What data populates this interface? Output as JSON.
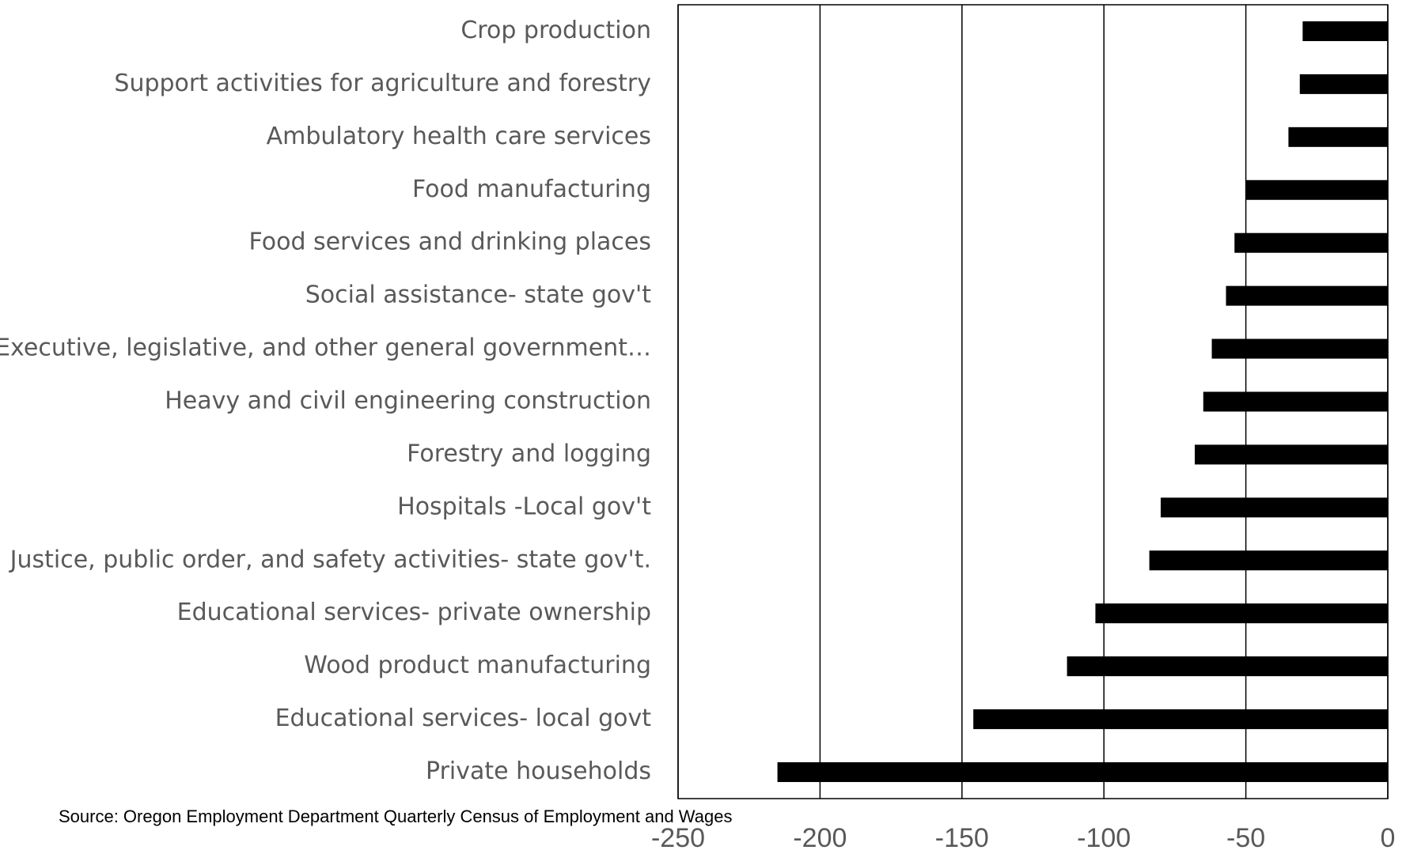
{
  "chart_data": {
    "type": "barh",
    "source": "Source: Oregon Employment Department Quarterly Census of Employment and Wages",
    "categories": [
      "Crop production",
      "Support activities for agriculture and forestry",
      "Ambulatory health care services",
      "Food manufacturing",
      "Food services and drinking places",
      "Social assistance- state gov't",
      "Executive, legislative, and other general government…",
      "Heavy and civil engineering construction",
      "Forestry and logging",
      "Hospitals -Local gov't",
      "Justice, public order, and safety activities- state gov't.",
      "Educational services- private ownership",
      "Wood product manufacturing",
      "Educational services- local govt",
      "Private households"
    ],
    "values": [
      -30,
      -31,
      -35,
      -50,
      -54,
      -57,
      -62,
      -65,
      -68,
      -80,
      -84,
      -103,
      -113,
      -146,
      -215
    ],
    "color": "#000000",
    "xlim": [
      -250,
      0
    ],
    "xticks": [
      -250,
      -200,
      -150,
      -100,
      -50,
      0
    ],
    "grid": true
  }
}
